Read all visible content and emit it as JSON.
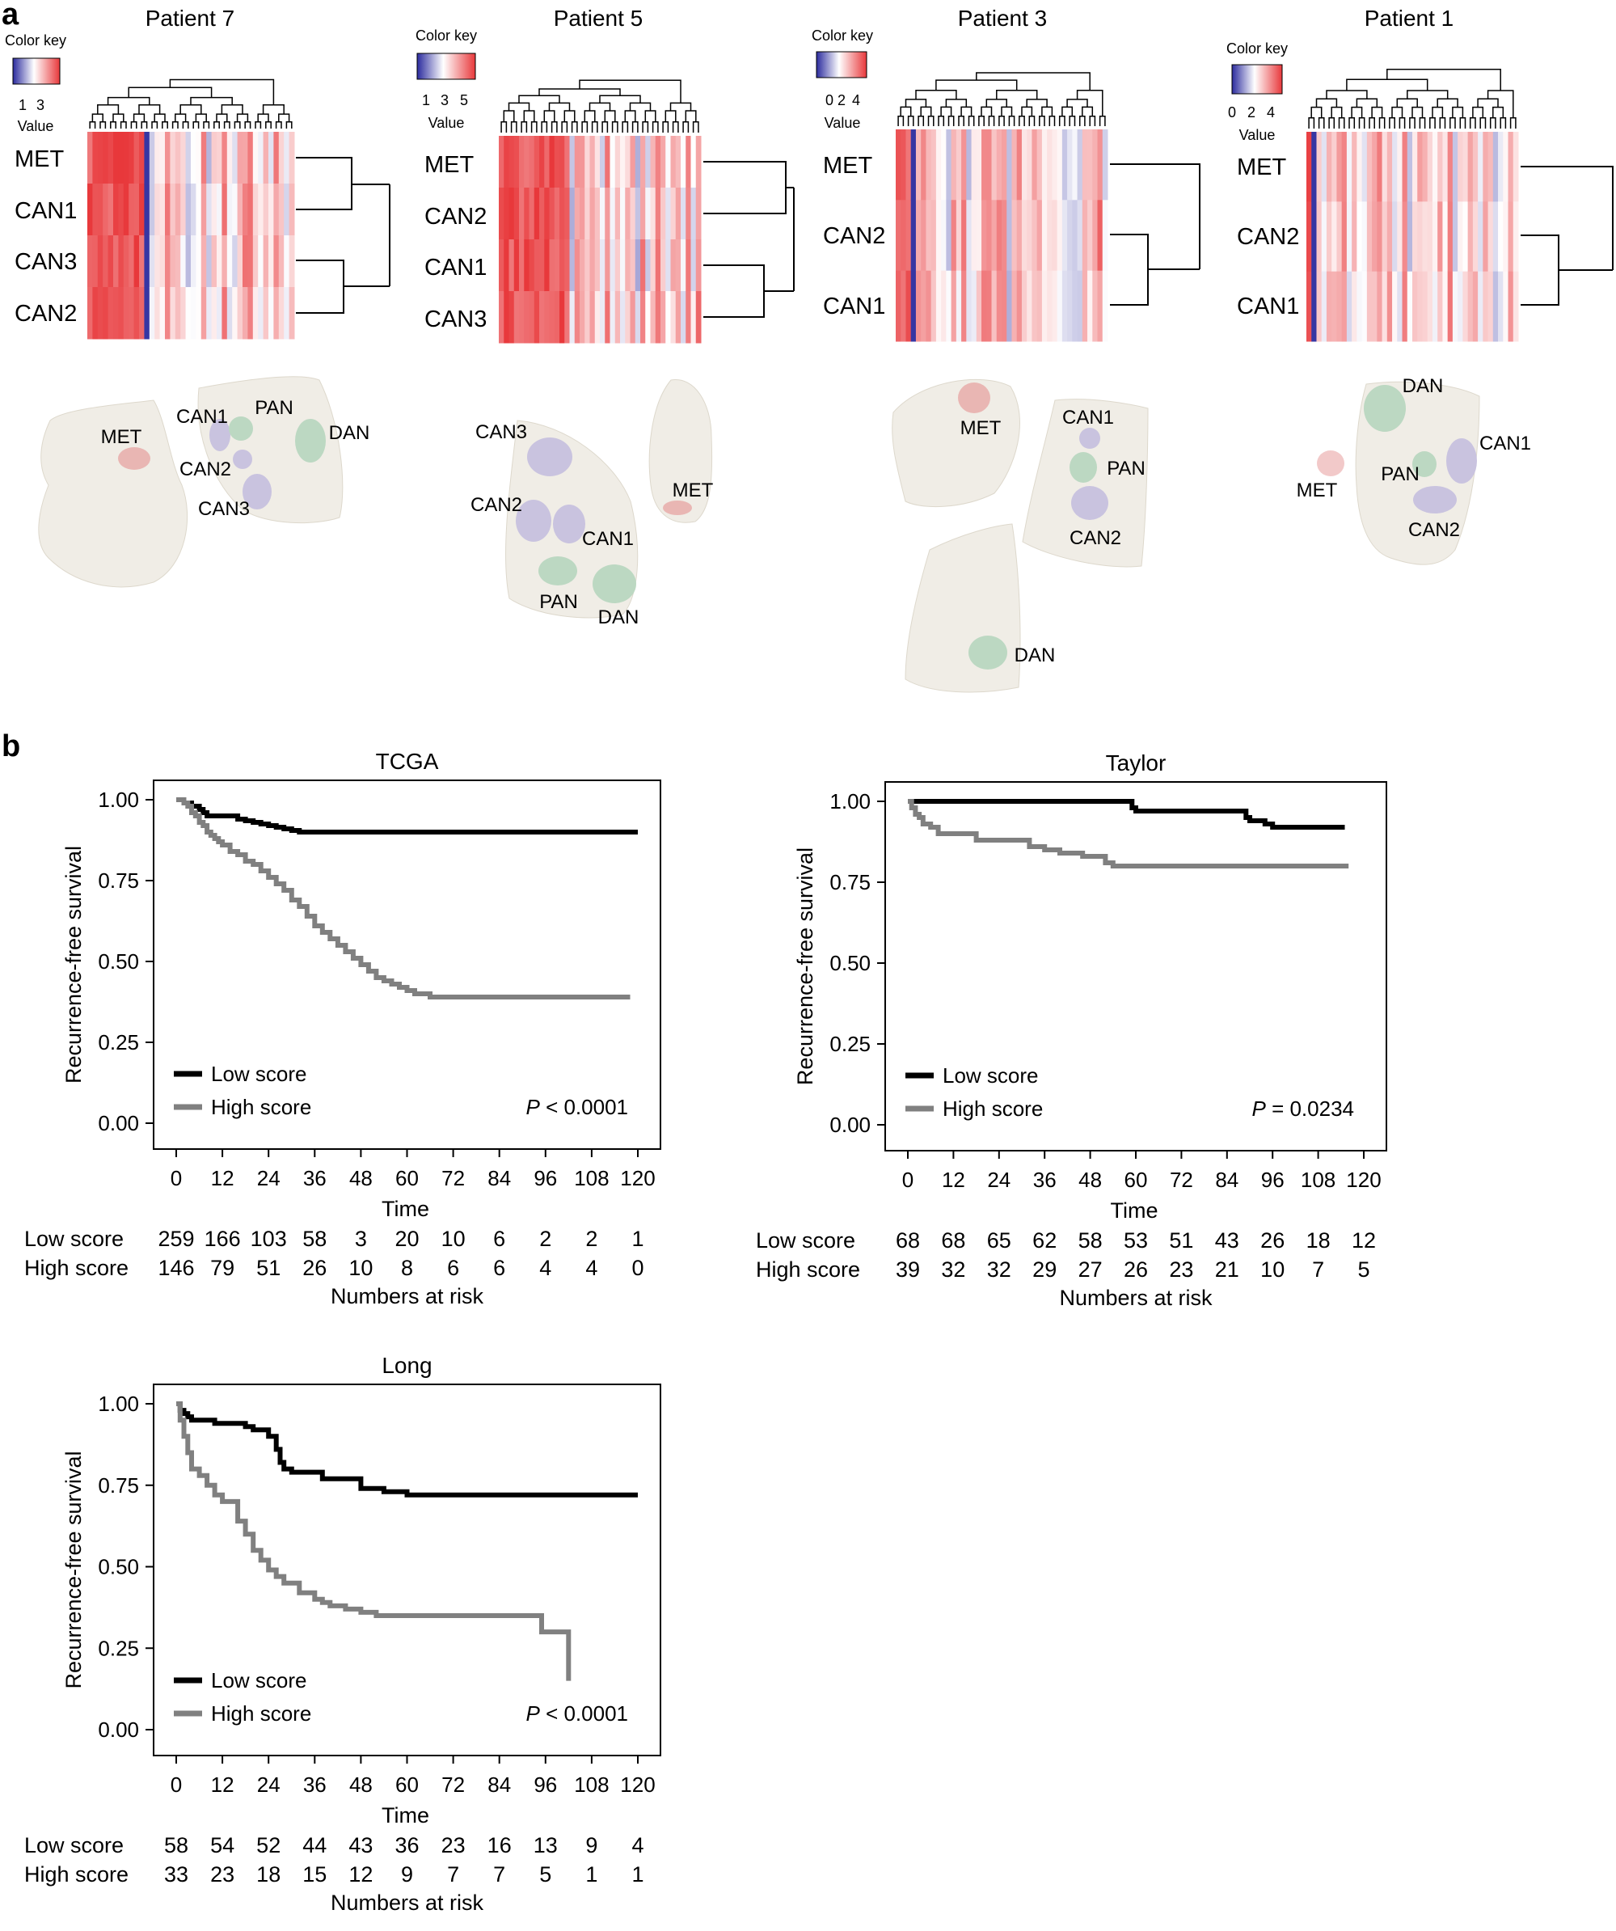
{
  "panel_a": {
    "letter": "a",
    "color_key_title": "Color key",
    "value_label": "Value",
    "heatmaps": [
      {
        "title": "Patient 7",
        "key_ticks": [
          "1",
          "3"
        ],
        "rows": [
          "MET",
          "CAN1",
          "CAN3",
          "CAN2"
        ]
      },
      {
        "title": "Patient 5",
        "key_ticks": [
          "1",
          "3",
          "5"
        ],
        "rows": [
          "MET",
          "CAN2",
          "CAN1",
          "CAN3"
        ]
      },
      {
        "title": "Patient 3",
        "key_ticks": [
          "0",
          "2",
          "4"
        ],
        "rows": [
          "MET",
          "CAN2",
          "CAN1"
        ]
      },
      {
        "title": "Patient 1",
        "key_ticks": [
          "0",
          "2",
          "4"
        ],
        "rows": [
          "MET",
          "CAN2",
          "CAN1"
        ]
      }
    ],
    "tissue_maps": [
      {
        "patient": "Patient 7",
        "labels": [
          "MET",
          "CAN1",
          "PAN",
          "DAN",
          "CAN2",
          "CAN3"
        ]
      },
      {
        "patient": "Patient 5",
        "labels": [
          "CAN3",
          "MET",
          "CAN2",
          "CAN1",
          "PAN",
          "DAN"
        ]
      },
      {
        "patient": "Patient 3",
        "labels": [
          "MET",
          "CAN1",
          "PAN",
          "CAN2",
          "DAN"
        ]
      },
      {
        "patient": "Patient 1",
        "labels": [
          "DAN",
          "CAN1",
          "MET",
          "PAN",
          "CAN2"
        ]
      }
    ],
    "colors": {
      "met": "#e9b6b3",
      "can": "#c9c3df",
      "normal": "#bcd8c2",
      "tissue": "#f0ede6",
      "heat_high": "#e8383b",
      "heat_low": "#2b2b9e"
    }
  },
  "panel_b": {
    "letter": "b",
    "ylabel": "Recurrence-free survival",
    "xlabel": "Time",
    "risk_label": "Numbers at risk",
    "legend": [
      "Low score",
      "High score"
    ],
    "time_ticks": [
      "0",
      "12",
      "24",
      "36",
      "48",
      "60",
      "72",
      "84",
      "96",
      "108",
      "120"
    ],
    "y_ticks": [
      "1.00",
      "0.75",
      "0.50",
      "0.25",
      "0.00"
    ],
    "colors": {
      "low": "#000000",
      "high": "#808080"
    }
  },
  "chart_data": [
    {
      "type": "line",
      "title": "TCGA",
      "xlabel": "Time",
      "ylabel": "Recurrence-free survival",
      "xlim": [
        0,
        120
      ],
      "ylim": [
        0,
        1
      ],
      "pvalue": {
        "italic": "P",
        "text": " < 0.0001"
      },
      "series": [
        {
          "name": "Low score",
          "x": [
            0,
            2,
            4,
            6,
            7,
            8,
            12,
            16,
            18,
            20,
            22,
            24,
            26,
            28,
            30,
            32,
            120
          ],
          "y": [
            1.0,
            0.99,
            0.98,
            0.97,
            0.96,
            0.95,
            0.95,
            0.94,
            0.935,
            0.93,
            0.925,
            0.92,
            0.915,
            0.91,
            0.905,
            0.9,
            0.9
          ]
        },
        {
          "name": "High score",
          "x": [
            0,
            2,
            3,
            4,
            5,
            6,
            7,
            8,
            9,
            10,
            11,
            12,
            14,
            16,
            18,
            20,
            22,
            24,
            26,
            28,
            30,
            32,
            34,
            36,
            38,
            40,
            42,
            44,
            46,
            48,
            50,
            52,
            54,
            56,
            58,
            60,
            62,
            64,
            66,
            118
          ],
          "y": [
            1.0,
            0.99,
            0.98,
            0.96,
            0.95,
            0.93,
            0.92,
            0.9,
            0.89,
            0.88,
            0.87,
            0.86,
            0.84,
            0.83,
            0.81,
            0.8,
            0.78,
            0.76,
            0.74,
            0.72,
            0.69,
            0.67,
            0.64,
            0.61,
            0.59,
            0.57,
            0.55,
            0.53,
            0.51,
            0.49,
            0.47,
            0.45,
            0.44,
            0.43,
            0.42,
            0.41,
            0.4,
            0.4,
            0.39,
            0.39
          ]
        }
      ],
      "risk_table": {
        "Low score": [
          "259",
          "166",
          "103",
          "58",
          "3",
          "20",
          "10",
          "6",
          "2",
          "2",
          "1"
        ],
        "High score": [
          "146",
          "79",
          "51",
          "26",
          "10",
          "8",
          "6",
          "6",
          "4",
          "4",
          "0"
        ]
      }
    },
    {
      "type": "line",
      "title": "Taylor",
      "xlabel": "Time",
      "ylabel": "Recurrence-free survival",
      "xlim": [
        0,
        120
      ],
      "ylim": [
        0,
        1
      ],
      "pvalue": {
        "italic": "P",
        "text": " = 0.0234"
      },
      "series": [
        {
          "name": "Low score",
          "x": [
            0,
            30,
            59,
            60,
            89,
            90,
            94,
            96,
            115
          ],
          "y": [
            1.0,
            1.0,
            0.98,
            0.97,
            0.95,
            0.94,
            0.93,
            0.92,
            0.92
          ]
        },
        {
          "name": "High score",
          "x": [
            0,
            1,
            2,
            3,
            4,
            6,
            8,
            18,
            32,
            36,
            40,
            46,
            52,
            54,
            116
          ],
          "y": [
            1.0,
            0.98,
            0.96,
            0.95,
            0.93,
            0.92,
            0.9,
            0.88,
            0.86,
            0.85,
            0.84,
            0.83,
            0.81,
            0.8,
            0.8
          ]
        }
      ],
      "risk_table": {
        "Low score": [
          "68",
          "68",
          "65",
          "62",
          "58",
          "53",
          "51",
          "43",
          "26",
          "18",
          "12"
        ],
        "High score": [
          "39",
          "32",
          "32",
          "29",
          "27",
          "26",
          "23",
          "21",
          "10",
          "7",
          "5"
        ]
      }
    },
    {
      "type": "line",
      "title": "Long",
      "xlabel": "Time",
      "ylabel": "Recurrence-free survival",
      "xlim": [
        0,
        120
      ],
      "ylim": [
        0,
        1
      ],
      "pvalue": {
        "italic": "P",
        "text": " < 0.0001"
      },
      "series": [
        {
          "name": "Low score",
          "x": [
            0,
            1,
            2,
            3,
            4,
            10,
            18,
            20,
            24,
            26,
            27,
            28,
            30,
            38,
            48,
            54,
            60,
            120
          ],
          "y": [
            1.0,
            0.98,
            0.97,
            0.96,
            0.95,
            0.94,
            0.93,
            0.92,
            0.9,
            0.86,
            0.82,
            0.8,
            0.79,
            0.77,
            0.74,
            0.73,
            0.72,
            0.72
          ]
        },
        {
          "name": "High score",
          "x": [
            0,
            1,
            2,
            3,
            4,
            6,
            8,
            10,
            12,
            16,
            18,
            20,
            22,
            24,
            26,
            28,
            32,
            36,
            38,
            40,
            44,
            48,
            52,
            95,
            100,
            102
          ],
          "y": [
            1.0,
            0.95,
            0.9,
            0.85,
            0.8,
            0.78,
            0.75,
            0.72,
            0.7,
            0.64,
            0.6,
            0.55,
            0.52,
            0.49,
            0.47,
            0.45,
            0.42,
            0.4,
            0.39,
            0.38,
            0.37,
            0.36,
            0.35,
            0.3,
            0.3,
            0.15
          ]
        }
      ],
      "risk_table": {
        "Low score": [
          "58",
          "54",
          "52",
          "44",
          "43",
          "36",
          "23",
          "16",
          "13",
          "9",
          "4"
        ],
        "High score": [
          "33",
          "23",
          "18",
          "15",
          "12",
          "9",
          "7",
          "7",
          "5",
          "1",
          "1"
        ]
      }
    }
  ]
}
